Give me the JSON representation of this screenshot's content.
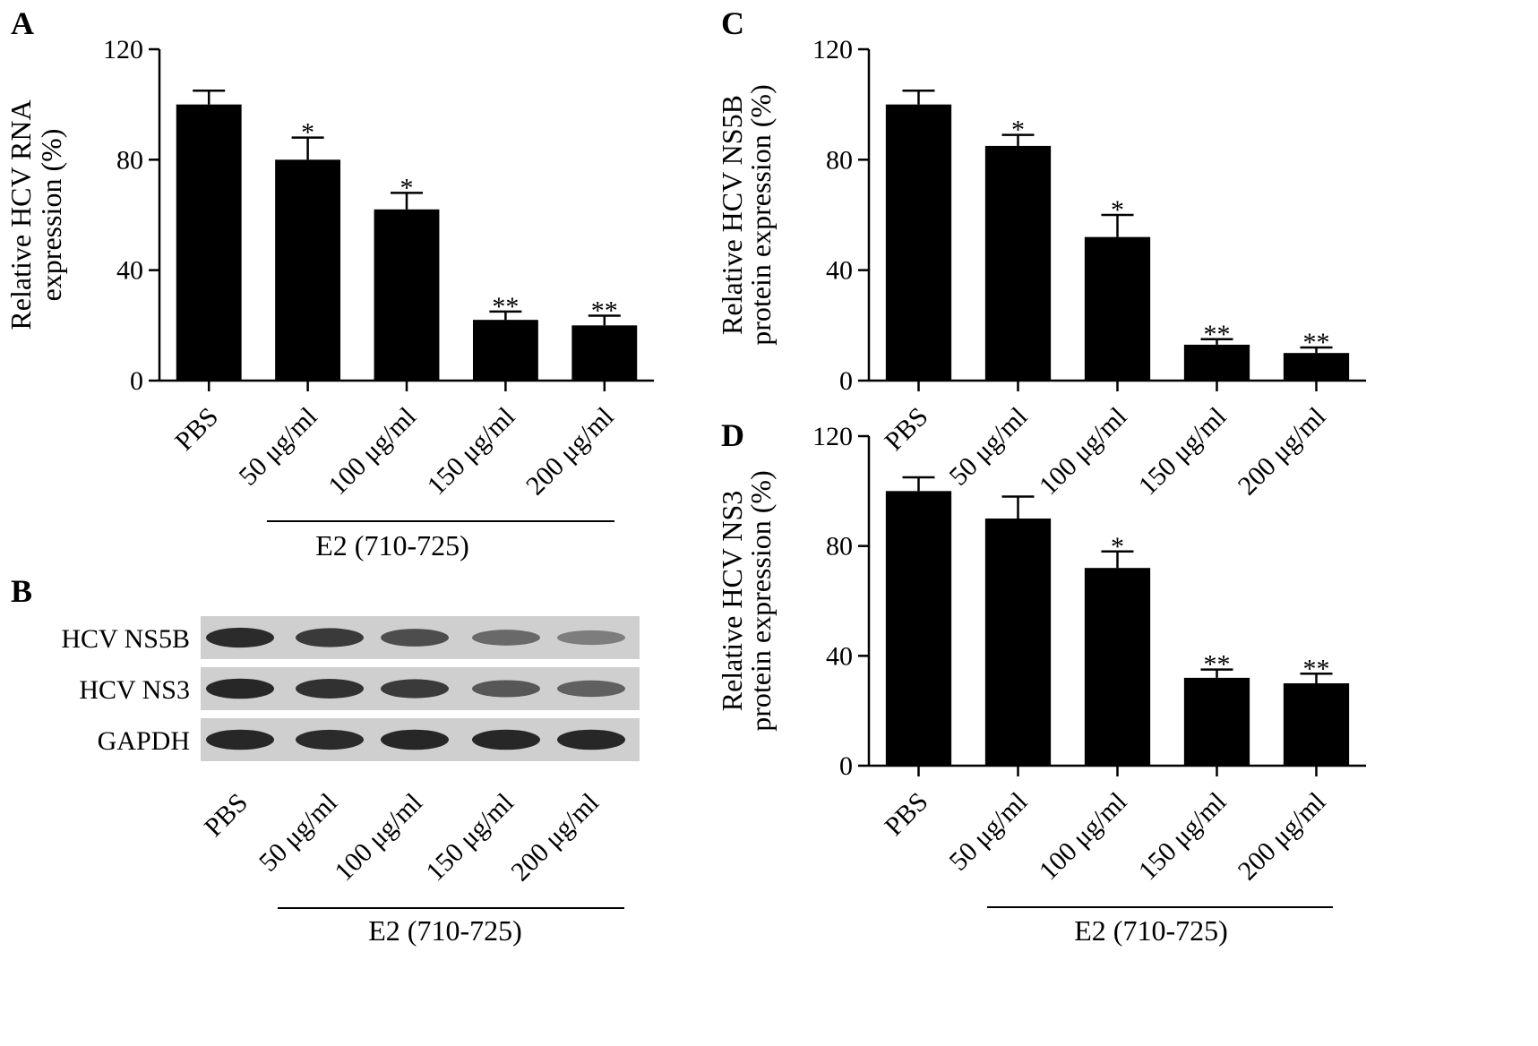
{
  "figure": {
    "panel_b": {
      "letter": "B",
      "rows": [
        "HCV NS5B",
        "HCV NS3",
        "GAPDH"
      ],
      "lanes": [
        "PBS",
        "50 μg/ml",
        "100 μg/ml",
        "150 μg/ml",
        "200 μg/ml"
      ],
      "group_label": "E2 (710-725)",
      "band_intensity": [
        [
          0.88,
          0.8,
          0.7,
          0.55,
          0.45
        ],
        [
          0.9,
          0.85,
          0.8,
          0.65,
          0.6
        ],
        [
          0.9,
          0.88,
          0.9,
          0.9,
          0.9
        ]
      ]
    }
  },
  "chart_data": [
    {
      "panel": "A",
      "type": "bar",
      "categories": [
        "PBS",
        "50 μg/ml",
        "100 μg/ml",
        "150 μg/ml",
        "200 μg/ml"
      ],
      "values": [
        100,
        80,
        62,
        22,
        20
      ],
      "errors": [
        5,
        8,
        6,
        3,
        3.5
      ],
      "significance": [
        "",
        "*",
        "*",
        "**",
        "**"
      ],
      "ylabel_lines": [
        "Relative HCV RNA",
        "expression (%)"
      ],
      "yticks": [
        0,
        40,
        80,
        120
      ],
      "ylim": [
        0,
        120
      ],
      "group_label": "E2 (710-725)",
      "grid": false
    },
    {
      "panel": "C",
      "type": "bar",
      "categories": [
        "PBS",
        "50 μg/ml",
        "100 μg/ml",
        "150 μg/ml",
        "200 μg/ml"
      ],
      "values": [
        100,
        85,
        52,
        13,
        10
      ],
      "errors": [
        5,
        4,
        8,
        2,
        2
      ],
      "significance": [
        "",
        "*",
        "*",
        "**",
        "**"
      ],
      "ylabel_lines": [
        "Relative HCV NS5B",
        "protein expression (%)"
      ],
      "yticks": [
        0,
        40,
        80,
        120
      ],
      "ylim": [
        0,
        120
      ],
      "grid": false
    },
    {
      "panel": "D",
      "type": "bar",
      "categories": [
        "PBS",
        "50 μg/ml",
        "100 μg/ml",
        "150 μg/ml",
        "200 μg/ml"
      ],
      "values": [
        100,
        90,
        72,
        32,
        30
      ],
      "errors": [
        5,
        8,
        6,
        3,
        3.5
      ],
      "significance": [
        "",
        "",
        "*",
        "**",
        "**"
      ],
      "ylabel_lines": [
        "Relative HCV NS3",
        "protein expression (%)"
      ],
      "yticks": [
        0,
        40,
        80,
        120
      ],
      "ylim": [
        0,
        120
      ],
      "group_label": "E2 (710-725)",
      "grid": false
    }
  ]
}
